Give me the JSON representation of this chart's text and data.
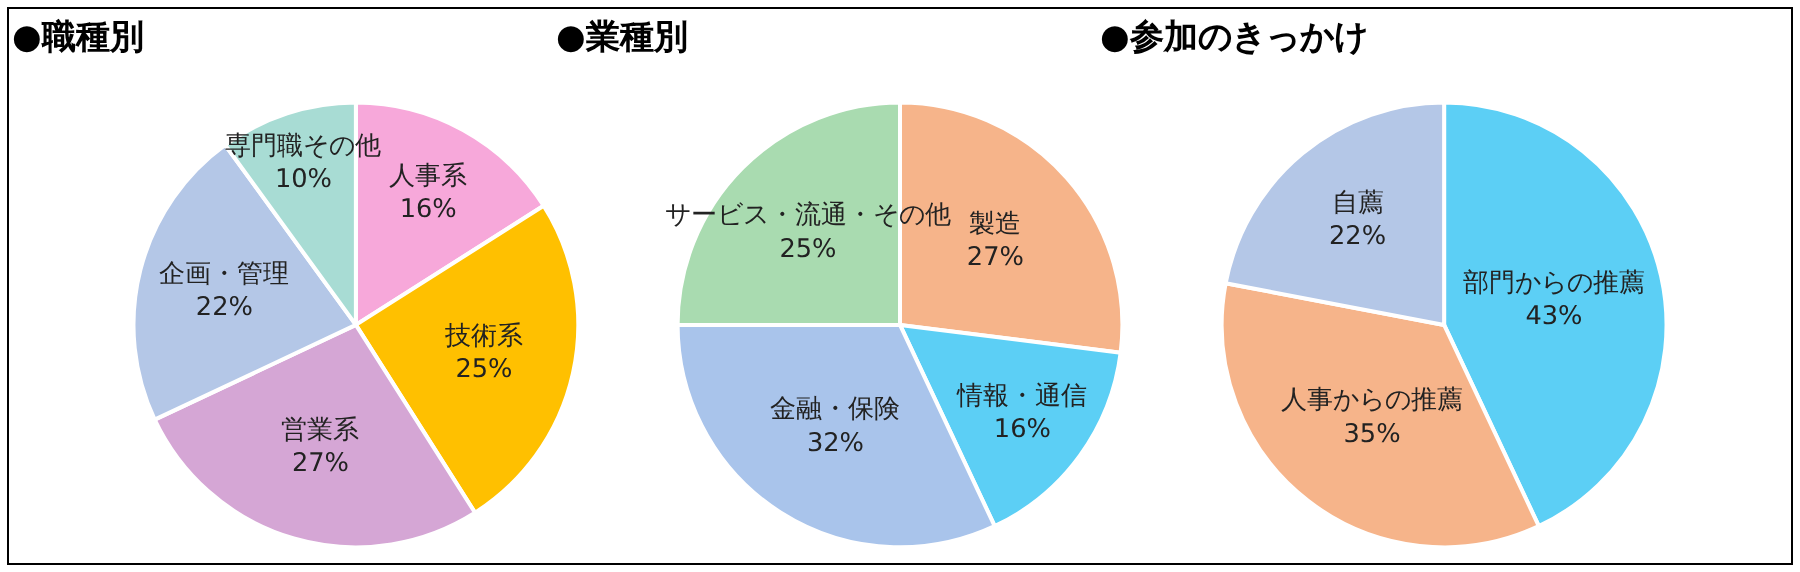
{
  "chart_data": [
    {
      "type": "pie",
      "title": "●職種別",
      "categories": [
        "人事系",
        "技術系",
        "営業系",
        "企画・管理",
        "専門職その他"
      ],
      "values": [
        16,
        25,
        27,
        22,
        10
      ],
      "value_labels": [
        "16%",
        "25%",
        "27%",
        "22%",
        "10%"
      ],
      "colors": [
        "#f7a8da",
        "#ffc000",
        "#d5a6d5",
        "#b4c7e7",
        "#a8dcd4"
      ]
    },
    {
      "type": "pie",
      "title": "●業種別",
      "categories": [
        "製造",
        "情報・通信",
        "金融・保険",
        "サービス・流通・その他"
      ],
      "values": [
        27,
        16,
        32,
        25
      ],
      "value_labels": [
        "27%",
        "16%",
        "32%",
        "25%"
      ],
      "colors": [
        "#f6b48a",
        "#5ccff5",
        "#a9c4eb",
        "#a9dbb0"
      ]
    },
    {
      "type": "pie",
      "title": "●参加のきっかけ",
      "categories": [
        "部門からの推薦",
        "人事からの推薦",
        "自薦"
      ],
      "values": [
        43,
        35,
        22
      ],
      "value_labels": [
        "43%",
        "35%",
        "22%"
      ],
      "colors": [
        "#5ccff5",
        "#f6b48a",
        "#b4c7e7"
      ]
    }
  ]
}
